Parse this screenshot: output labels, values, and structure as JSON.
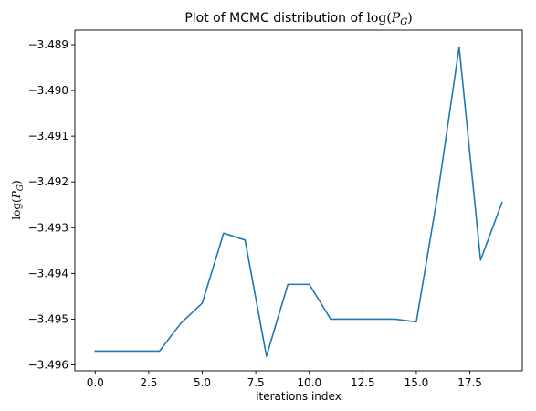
{
  "chart_data": {
    "type": "line",
    "title": {
      "prefix": "Plot of MCMC distribution of ",
      "math_fn": "log",
      "math_open": "(",
      "math_var": "P",
      "math_sub": "G",
      "math_close": ")"
    },
    "xlabel": "iterations index",
    "ylabel": {
      "math_fn": "log",
      "math_open": "(",
      "math_var": "P",
      "math_sub": "G",
      "math_close": ")"
    },
    "xlim": [
      -0.95,
      19.95
    ],
    "ylim": [
      -3.49613,
      -3.48868
    ],
    "grid": false,
    "legend": "none",
    "x_ticks": [
      0,
      2.5,
      5,
      7.5,
      10,
      12.5,
      15,
      17.5
    ],
    "x_tick_labels": [
      "0.0",
      "2.5",
      "5.0",
      "7.5",
      "10.0",
      "12.5",
      "15.0",
      "17.5"
    ],
    "y_ticks": [
      -3.496,
      -3.495,
      -3.494,
      -3.493,
      -3.492,
      -3.491,
      -3.49,
      -3.489
    ],
    "y_tick_labels": [
      "−3.496",
      "−3.495",
      "−3.494",
      "−3.493",
      "−3.492",
      "−3.491",
      "−3.490",
      "−3.489"
    ],
    "series": [
      {
        "color": "#1f77b4",
        "x": [
          0,
          1,
          2,
          3,
          4,
          5,
          6,
          7,
          8,
          9,
          10,
          11,
          12,
          13,
          14,
          15,
          16,
          17,
          18,
          19
        ],
        "values": [
          -3.4957,
          -3.4957,
          -3.4957,
          -3.4957,
          -3.49509,
          -3.49465,
          -3.49312,
          -3.49327,
          -3.49581,
          -3.49424,
          -3.49424,
          -3.495,
          -3.495,
          -3.495,
          -3.495,
          -3.49506,
          -3.49227,
          -3.48905,
          -3.49371,
          -3.49245
        ]
      }
    ]
  }
}
